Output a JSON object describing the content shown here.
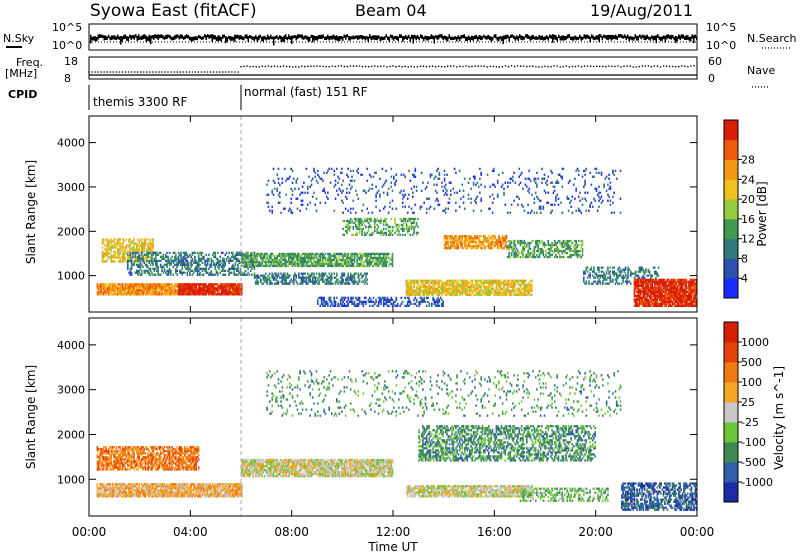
{
  "header": {
    "station": "Syowa East (fitACF)",
    "beam": "Beam 04",
    "date": "19/Aug/2011"
  },
  "strips": {
    "nsky": {
      "label": "N.Sky",
      "tick_top": "10^5",
      "tick_bottom": "10^0",
      "right_tick_top": "10^5",
      "right_tick_bottom": "10^0",
      "right_label": "N.Search"
    },
    "freq": {
      "label_line1": "Freq.",
      "label_line2": "[MHz]",
      "tick_top": "18",
      "tick_bottom": "8",
      "right_tick_top": "60",
      "right_tick_bottom": "0",
      "right_label": "Nave"
    },
    "cpid": {
      "label": "CPID",
      "modes": [
        "themis 3300 RF",
        "normal (fast) 151 RF"
      ],
      "mode_change_hour": 6
    }
  },
  "xaxis": {
    "title": "Time UT",
    "range_hours": [
      0,
      24
    ],
    "ticks": [
      "00:00",
      "04:00",
      "08:00",
      "12:00",
      "16:00",
      "20:00",
      "00:00"
    ]
  },
  "chart_data": [
    {
      "type": "heatmap",
      "quantity": "Power",
      "ylabel": "Slant Range [km]",
      "ylim": [
        180,
        4600
      ],
      "yticks": [
        "1000",
        "2000",
        "3000",
        "4000"
      ],
      "colorbar": {
        "title": "Power [dB]",
        "ticks": [
          "4",
          "8",
          "12",
          "16",
          "20",
          "24",
          "28"
        ],
        "colors": [
          "#1a2bff",
          "#2d4fb0",
          "#2f7a78",
          "#3f9a50",
          "#95cc3c",
          "#f0c020",
          "#f39a12",
          "#f05a08",
          "#d81e05"
        ]
      },
      "regions": [
        {
          "t0": 0.3,
          "t1": 4.3,
          "r0": 560,
          "r1": 800,
          "level": 6,
          "dens": 0.9
        },
        {
          "t0": 3.5,
          "t1": 6.0,
          "r0": 560,
          "r1": 800,
          "level": 8,
          "dens": 0.95
        },
        {
          "t0": 0.5,
          "t1": 2.5,
          "r0": 1300,
          "r1": 1800,
          "level": 5,
          "dens": 0.6
        },
        {
          "t0": 1.5,
          "t1": 6.5,
          "r0": 1000,
          "r1": 1500,
          "level": 2,
          "dens": 0.5
        },
        {
          "t0": 6.0,
          "t1": 12.0,
          "r0": 1200,
          "r1": 1500,
          "level": 3,
          "dens": 0.75
        },
        {
          "t0": 6.5,
          "t1": 11.0,
          "r0": 800,
          "r1": 1050,
          "level": 2,
          "dens": 0.55
        },
        {
          "t0": 9.0,
          "t1": 14.0,
          "r0": 300,
          "r1": 500,
          "level": 1,
          "dens": 0.45
        },
        {
          "t0": 10.0,
          "t1": 13.0,
          "r0": 1900,
          "r1": 2300,
          "level": 3,
          "dens": 0.4
        },
        {
          "t0": 12.5,
          "t1": 17.5,
          "r0": 550,
          "r1": 900,
          "level": 5,
          "dens": 0.8
        },
        {
          "t0": 14.0,
          "t1": 16.5,
          "r0": 1600,
          "r1": 1900,
          "level": 6,
          "dens": 0.75
        },
        {
          "t0": 16.5,
          "t1": 19.5,
          "r0": 1400,
          "r1": 1800,
          "level": 3,
          "dens": 0.5
        },
        {
          "t0": 19.5,
          "t1": 22.5,
          "r0": 800,
          "r1": 1200,
          "level": 2,
          "dens": 0.45
        },
        {
          "t0": 21.5,
          "t1": 24.0,
          "r0": 300,
          "r1": 900,
          "level": 8,
          "dens": 0.9
        },
        {
          "t0": 7.0,
          "t1": 21.0,
          "r0": 2400,
          "r1": 3400,
          "level": 1,
          "dens": 0.1
        }
      ]
    },
    {
      "type": "heatmap",
      "quantity": "Velocity",
      "ylabel": "Slant Range [km]",
      "ylim": [
        180,
        4600
      ],
      "yticks": [
        "1000",
        "2000",
        "3000",
        "4000"
      ],
      "colorbar": {
        "title": "Velocity [m s^-1]",
        "ticks": [
          "1000",
          "500",
          "100",
          "25",
          "-25",
          "-100",
          "-500",
          "-1000"
        ],
        "colors": [
          "#1e2ba6",
          "#2e5fa8",
          "#3c8a52",
          "#6cc43a",
          "#c8c8c8",
          "#f5a623",
          "#f07a10",
          "#e6400a",
          "#d81e05"
        ]
      },
      "regions": [
        {
          "t0": 0.3,
          "t1": 4.3,
          "r0": 1200,
          "r1": 1700,
          "level": 6,
          "dens": 0.7
        },
        {
          "t0": 0.3,
          "t1": 6.0,
          "r0": 600,
          "r1": 900,
          "level": 5,
          "dens": 0.9
        },
        {
          "t0": 6.0,
          "t1": 12.0,
          "r0": 1050,
          "r1": 1450,
          "level": 4,
          "dens": 0.85
        },
        {
          "t0": 12.5,
          "t1": 17.5,
          "r0": 600,
          "r1": 850,
          "level": 4,
          "dens": 0.8
        },
        {
          "t0": 13.0,
          "t1": 20.0,
          "r0": 1400,
          "r1": 2200,
          "level": 2,
          "dens": 0.5
        },
        {
          "t0": 17.0,
          "t1": 20.5,
          "r0": 500,
          "r1": 800,
          "level": 3,
          "dens": 0.5
        },
        {
          "t0": 21.0,
          "t1": 24.0,
          "r0": 300,
          "r1": 900,
          "level": 1,
          "dens": 0.6
        },
        {
          "t0": 7.0,
          "t1": 21.0,
          "r0": 2400,
          "r1": 3400,
          "level": 2,
          "dens": 0.1
        }
      ]
    }
  ]
}
